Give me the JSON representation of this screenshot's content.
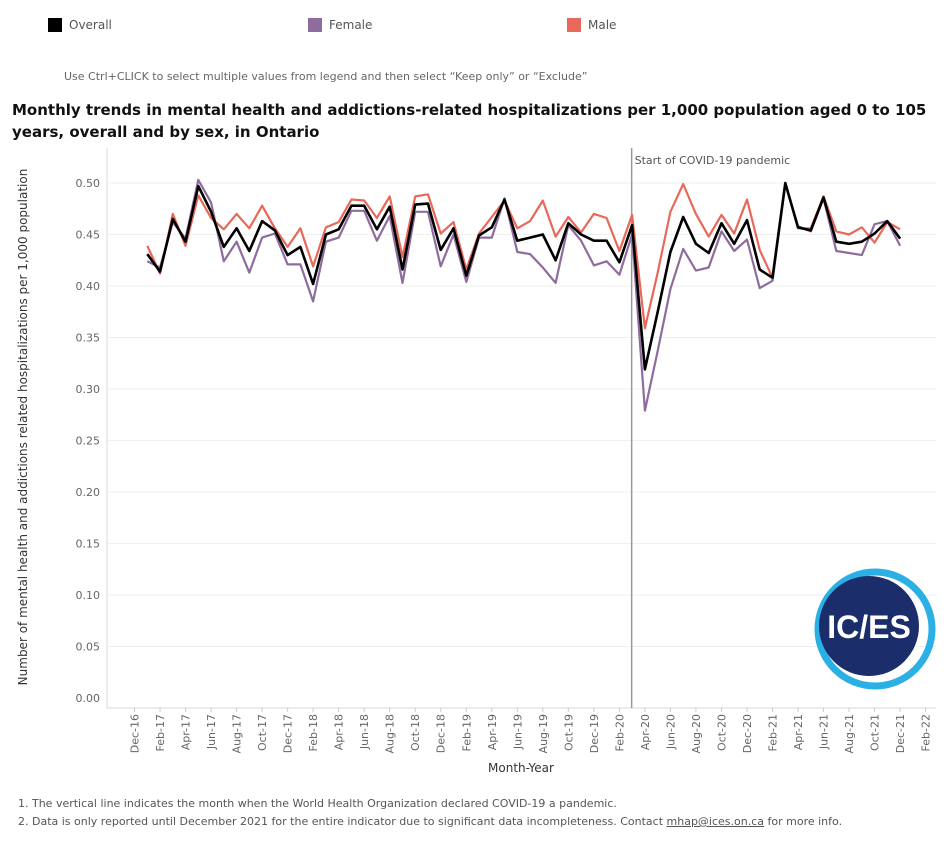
{
  "legend": [
    {
      "label": "Overall",
      "color": "#000000"
    },
    {
      "label": "Female",
      "color": "#8e6c9e"
    },
    {
      "label": "Male",
      "color": "#e8685a"
    }
  ],
  "hint": "Use Ctrl+CLICK to select multiple values from legend and then select “Keep only” or “Exclude”",
  "title": "Monthly trends in mental health and addictions-related hospitalizations per 1,000 population aged 0 to 105 years, overall and by sex, in Ontario",
  "logo": {
    "text": "IC/ES"
  },
  "footnotes": {
    "note1": "1. The vertical line indicates the month when the World Health Organization declared COVID-19 a pandemic.",
    "note2_prefix": "2. Data is only reported until December 2021 for the entire indicator due to significant data incompleteness. Contact",
    "note2_link": "mhap@ices.on.ca",
    "note2_suffix": "for more info."
  },
  "chart_data": {
    "type": "line",
    "title": "Monthly trends in mental health and addictions-related hospitalizations per 1,000 population aged 0 to 105 years, overall and by sex, in Ontario",
    "xlabel": "Month-Year",
    "ylabel": "Number of mental health and addictions related hospitalizations per 1,000 population",
    "ylim": [
      0,
      0.52
    ],
    "yticks": [
      "0.00",
      "0.05",
      "0.10",
      "0.15",
      "0.20",
      "0.25",
      "0.30",
      "0.35",
      "0.40",
      "0.45",
      "0.50"
    ],
    "xtick_labels": [
      "Dec-16",
      "Feb-17",
      "Apr-17",
      "Jun-17",
      "Aug-17",
      "Oct-17",
      "Dec-17",
      "Feb-18",
      "Apr-18",
      "Jun-18",
      "Aug-18",
      "Oct-18",
      "Dec-18",
      "Feb-19",
      "Apr-19",
      "Jun-19",
      "Aug-19",
      "Oct-19",
      "Dec-19",
      "Feb-20",
      "Apr-20",
      "Jun-20",
      "Aug-20",
      "Oct-20",
      "Dec-20",
      "Feb-21",
      "Apr-21",
      "Jun-21",
      "Aug-21",
      "Oct-21",
      "Dec-21",
      "Feb-22"
    ],
    "months": [
      "Jan-17",
      "Feb-17",
      "Mar-17",
      "Apr-17",
      "May-17",
      "Jun-17",
      "Jul-17",
      "Aug-17",
      "Sep-17",
      "Oct-17",
      "Nov-17",
      "Dec-17",
      "Jan-18",
      "Feb-18",
      "Mar-18",
      "Apr-18",
      "May-18",
      "Jun-18",
      "Jul-18",
      "Aug-18",
      "Sep-18",
      "Oct-18",
      "Nov-18",
      "Dec-18",
      "Jan-19",
      "Feb-19",
      "Mar-19",
      "Apr-19",
      "May-19",
      "Jun-19",
      "Jul-19",
      "Aug-19",
      "Sep-19",
      "Oct-19",
      "Nov-19",
      "Dec-19",
      "Jan-20",
      "Feb-20",
      "Mar-20",
      "Apr-20",
      "May-20",
      "Jun-20",
      "Jul-20",
      "Aug-20",
      "Sep-20",
      "Oct-20",
      "Nov-20",
      "Dec-20",
      "Jan-21",
      "Feb-21",
      "Mar-21",
      "Apr-21",
      "May-21",
      "Jun-21",
      "Jul-21",
      "Aug-21",
      "Sep-21",
      "Oct-21",
      "Nov-21",
      "Dec-21"
    ],
    "series": [
      {
        "name": "Female",
        "color": "#8e6c9e",
        "values": [
          0.424,
          0.418,
          0.462,
          0.446,
          0.503,
          0.481,
          0.424,
          0.443,
          0.413,
          0.447,
          0.451,
          0.421,
          0.421,
          0.385,
          0.443,
          0.447,
          0.473,
          0.473,
          0.444,
          0.468,
          0.403,
          0.472,
          0.472,
          0.419,
          0.45,
          0.404,
          0.447,
          0.447,
          0.485,
          0.433,
          0.431,
          0.418,
          0.403,
          0.459,
          0.444,
          0.42,
          0.424,
          0.411,
          0.45,
          0.279,
          0.337,
          0.397,
          0.436,
          0.415,
          0.418,
          0.453,
          0.434,
          0.445,
          0.398,
          0.405,
          0.499,
          0.458,
          0.453,
          0.485,
          0.434,
          0.432,
          0.43,
          0.46,
          0.463,
          0.439
        ]
      },
      {
        "name": "Male",
        "color": "#e8685a",
        "values": [
          0.439,
          0.412,
          0.47,
          0.439,
          0.488,
          0.466,
          0.455,
          0.47,
          0.456,
          0.478,
          0.456,
          0.438,
          0.456,
          0.419,
          0.457,
          0.462,
          0.484,
          0.483,
          0.466,
          0.487,
          0.428,
          0.487,
          0.489,
          0.451,
          0.462,
          0.416,
          0.451,
          0.467,
          0.483,
          0.456,
          0.463,
          0.483,
          0.448,
          0.467,
          0.452,
          0.47,
          0.466,
          0.434,
          0.469,
          0.359,
          0.413,
          0.472,
          0.499,
          0.47,
          0.448,
          0.469,
          0.451,
          0.484,
          0.435,
          0.408,
          0.5,
          0.456,
          0.456,
          0.487,
          0.453,
          0.45,
          0.457,
          0.442,
          0.462,
          0.455
        ]
      },
      {
        "name": "Overall",
        "color": "#000000",
        "values": [
          0.431,
          0.414,
          0.465,
          0.443,
          0.497,
          0.472,
          0.438,
          0.456,
          0.434,
          0.463,
          0.454,
          0.43,
          0.438,
          0.402,
          0.45,
          0.455,
          0.478,
          0.478,
          0.455,
          0.477,
          0.416,
          0.479,
          0.48,
          0.435,
          0.456,
          0.41,
          0.449,
          0.457,
          0.484,
          0.444,
          0.447,
          0.45,
          0.425,
          0.461,
          0.45,
          0.444,
          0.444,
          0.423,
          0.459,
          0.319,
          0.375,
          0.433,
          0.467,
          0.441,
          0.432,
          0.461,
          0.441,
          0.464,
          0.416,
          0.408,
          0.5,
          0.457,
          0.454,
          0.486,
          0.443,
          0.441,
          0.443,
          0.451,
          0.463,
          0.446
        ]
      }
    ],
    "annotations": [
      {
        "label": "Start of COVID-19 pandemic",
        "month": "Mar-20"
      }
    ]
  }
}
